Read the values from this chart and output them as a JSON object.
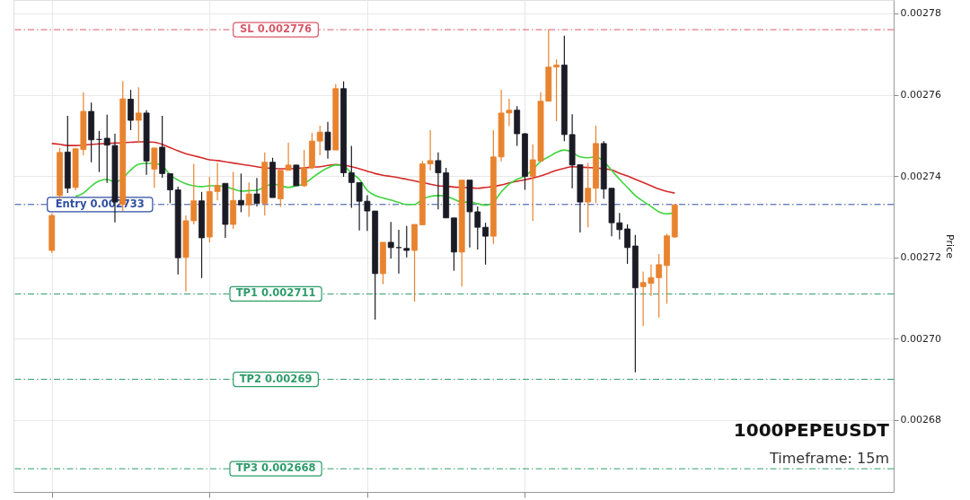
{
  "chart_data": {
    "type": "candlestick",
    "title": "1000PEPEUSDT",
    "subtitle": "Timeframe: 15m",
    "ylabel": "Price",
    "categories": [
      null,
      null,
      null,
      null,
      null,
      null,
      null,
      null,
      null,
      null,
      null,
      null,
      null,
      null,
      null,
      null,
      null,
      null,
      null,
      null,
      null,
      null,
      null,
      null,
      null,
      null,
      null,
      null,
      null,
      null,
      null,
      null,
      null,
      null,
      null,
      null,
      null,
      null,
      null,
      null,
      null,
      null,
      null,
      null,
      null,
      null,
      null,
      null,
      null,
      null,
      null,
      null,
      null,
      null,
      null,
      null,
      null,
      null,
      null,
      null,
      null,
      null,
      null,
      null,
      null,
      null,
      null,
      null,
      null,
      null,
      null,
      null,
      null,
      null,
      null,
      null,
      null,
      null,
      null,
      null
    ],
    "ohlc": [
      [
        0.0027217,
        0.0027308,
        0.0027211,
        0.0027303
      ],
      [
        0.0027352,
        0.0027469,
        0.0027343,
        0.0027458
      ],
      [
        0.0027459,
        0.0027548,
        0.0027358,
        0.002737
      ],
      [
        0.0027372,
        0.0027469,
        0.0027365,
        0.0027467
      ],
      [
        0.0027465,
        0.0027606,
        0.0027451,
        0.0027559
      ],
      [
        0.0027559,
        0.0027581,
        0.0027434,
        0.0027489
      ],
      [
        0.002749,
        0.0027511,
        0.002741,
        0.002749
      ],
      [
        0.0027493,
        0.0027551,
        0.0027383,
        0.0027476
      ],
      [
        0.0027475,
        0.0027504,
        0.0027286,
        0.0027336
      ],
      [
        0.002733,
        0.0027634,
        0.0027314,
        0.002759
      ],
      [
        0.0027589,
        0.0027612,
        0.0027513,
        0.0027537
      ],
      [
        0.0027537,
        0.0027618,
        0.0027484,
        0.0027555
      ],
      [
        0.0027555,
        0.0027562,
        0.0027403,
        0.0027437
      ],
      [
        0.0027417,
        0.0027469,
        0.0027371,
        0.0027469
      ],
      [
        0.0027471,
        0.0027548,
        0.0027396,
        0.0027406
      ],
      [
        0.0027406,
        0.0027406,
        0.0027333,
        0.0027366
      ],
      [
        0.0027366,
        0.0027374,
        0.0027158,
        0.0027199
      ],
      [
        0.00272,
        0.0027303,
        0.0027116,
        0.002729
      ],
      [
        0.002729,
        0.002743,
        0.0027281,
        0.0027339
      ],
      [
        0.0027339,
        0.0027361,
        0.0027149,
        0.0027248
      ],
      [
        0.002725,
        0.0027398,
        0.0027237,
        0.0027362
      ],
      [
        0.0027362,
        0.0027432,
        0.002734,
        0.0027377
      ],
      [
        0.0027382,
        0.0027382,
        0.0027248,
        0.0027281
      ],
      [
        0.0027281,
        0.002741,
        0.002727,
        0.002734
      ],
      [
        0.002734,
        0.0027406,
        0.0027311,
        0.0027329
      ],
      [
        0.0027329,
        0.0027384,
        0.00273,
        0.0027356
      ],
      [
        0.0027356,
        0.0027395,
        0.0027325,
        0.0027333
      ],
      [
        0.0027333,
        0.0027458,
        0.0027303,
        0.0027434
      ],
      [
        0.0027434,
        0.0027445,
        0.0027347,
        0.0027347
      ],
      [
        0.0027344,
        0.0027414,
        0.0027324,
        0.0027414
      ],
      [
        0.0027414,
        0.0027482,
        0.0027414,
        0.0027427
      ],
      [
        0.0027427,
        0.0027427,
        0.0027376,
        0.0027376
      ],
      [
        0.0027376,
        0.0027464,
        0.0027373,
        0.002742
      ],
      [
        0.002742,
        0.0027506,
        0.0027417,
        0.0027486
      ],
      [
        0.0027486,
        0.0027524,
        0.0027451,
        0.0027508
      ],
      [
        0.0027508,
        0.0027533,
        0.0027443,
        0.0027464
      ],
      [
        0.0027464,
        0.0027626,
        0.0027464,
        0.0027615
      ],
      [
        0.0027615,
        0.0027633,
        0.0027398,
        0.0027408
      ],
      [
        0.0027408,
        0.0027474,
        0.0027322,
        0.0027384
      ],
      [
        0.0027384,
        0.0027384,
        0.0027266,
        0.0027338
      ],
      [
        0.0027338,
        0.0027353,
        0.0027265,
        0.0027314
      ],
      [
        0.0027314,
        0.0027314,
        0.0027047,
        0.002716
      ],
      [
        0.002716,
        0.0027237,
        0.0027134,
        0.0027237
      ],
      [
        0.0027237,
        0.0027287,
        0.0027197,
        0.0027224
      ],
      [
        0.0027224,
        0.0027268,
        0.002716,
        0.0027224
      ],
      [
        0.0027222,
        0.0027277,
        0.00272,
        0.0027217
      ],
      [
        0.0027217,
        0.0027281,
        0.0027091,
        0.0027281
      ],
      [
        0.002728,
        0.0027437,
        0.002728,
        0.002743
      ],
      [
        0.002743,
        0.0027513,
        0.0027414,
        0.0027438
      ],
      [
        0.0027438,
        0.0027458,
        0.0027318,
        0.0027408
      ],
      [
        0.0027408,
        0.002742,
        0.0027297,
        0.0027297
      ],
      [
        0.0027297,
        0.0027297,
        0.0027167,
        0.0027213
      ],
      [
        0.0027213,
        0.002739,
        0.0027128,
        0.002739
      ],
      [
        0.002739,
        0.002739,
        0.0027224,
        0.0027312
      ],
      [
        0.0027312,
        0.0027325,
        0.0027219,
        0.0027274
      ],
      [
        0.0027274,
        0.0027285,
        0.0027182,
        0.0027252
      ],
      [
        0.0027252,
        0.0027513,
        0.0027233,
        0.0027447
      ],
      [
        0.0027447,
        0.0027612,
        0.0027436,
        0.0027555
      ],
      [
        0.0027555,
        0.002759,
        0.0027523,
        0.0027562
      ],
      [
        0.0027562,
        0.0027572,
        0.0027474,
        0.0027504
      ],
      [
        0.0027504,
        0.0027506,
        0.0027366,
        0.0027399
      ],
      [
        0.0027399,
        0.0027478,
        0.0027289,
        0.002744
      ],
      [
        0.0027437,
        0.0027606,
        0.0027437,
        0.0027584
      ],
      [
        0.0027584,
        0.0027761,
        0.0027584,
        0.0027668
      ],
      [
        0.0027668,
        0.0027687,
        0.0027535,
        0.0027673
      ],
      [
        0.0027673,
        0.0027745,
        0.0027486,
        0.0027502
      ],
      [
        0.0027502,
        0.0027552,
        0.002737,
        0.0027427
      ],
      [
        0.0027428,
        0.0027428,
        0.0027261,
        0.0027336
      ],
      [
        0.0027336,
        0.0027432,
        0.0027274,
        0.002737
      ],
      [
        0.002737,
        0.0027524,
        0.0027333,
        0.002748
      ],
      [
        0.002748,
        0.0027486,
        0.0027344,
        0.0027368
      ],
      [
        0.002737,
        0.002737,
        0.0027252,
        0.0027285
      ],
      [
        0.0027285,
        0.0027309,
        0.0027244,
        0.0027268
      ],
      [
        0.002727,
        0.0027281,
        0.0027184,
        0.0027224
      ],
      [
        0.0027228,
        0.0027255,
        0.0026917,
        0.0027125
      ],
      [
        0.0027128,
        0.0027165,
        0.0027031,
        0.0027138
      ],
      [
        0.0027136,
        0.0027182,
        0.0027105,
        0.002715
      ],
      [
        0.002715,
        0.0027208,
        0.0027052,
        0.0027182
      ],
      [
        0.002718,
        0.0027258,
        0.0027086,
        0.0027253
      ],
      [
        0.002725,
        0.0027331,
        0.0027248,
        0.0027329
      ]
    ],
    "series": [
      {
        "type": "line",
        "color": "#d42a2a",
        "values": [
          0.002748,
          0.0027478,
          0.0027475,
          0.0027475,
          0.0027476,
          0.0027478,
          0.0027479,
          0.002748,
          0.0027481,
          0.0027482,
          0.0027483,
          0.0027484,
          0.0027484,
          0.0027483,
          0.0027478,
          0.002747,
          0.0027462,
          0.0027455,
          0.002745,
          0.0027445,
          0.002744,
          0.0027438,
          0.0027435,
          0.0027432,
          0.0027429,
          0.0027426,
          0.0027423,
          0.002742,
          0.0027419,
          0.0027418,
          0.0027418,
          0.0027419,
          0.002742,
          0.0027422,
          0.0027423,
          0.0027426,
          0.0027428,
          0.0027427,
          0.0027423,
          0.0027418,
          0.0027412,
          0.0027406,
          0.0027402,
          0.0027399,
          0.0027396,
          0.0027392,
          0.0027388,
          0.0027384,
          0.002738,
          0.0027376,
          0.0027375,
          0.0027373,
          0.0027372,
          0.0027371,
          0.002737,
          0.0027372,
          0.0027374,
          0.0027378,
          0.0027383,
          0.0027387,
          0.0027391,
          0.0027395,
          0.00274,
          0.0027407,
          0.0027414,
          0.0027419,
          0.0027423,
          0.0027422,
          0.0027421,
          0.002742,
          0.0027418,
          0.0027415,
          0.0027407,
          0.00274,
          0.0027392,
          0.0027384,
          0.0027376,
          0.0027368,
          0.0027362,
          0.0027358
        ]
      },
      {
        "type": "line",
        "color": "#3fd43f",
        "values": [
          null,
          null,
          null,
          0.002735,
          0.0027358,
          0.0027375,
          0.0027388,
          0.0027392,
          0.0027385,
          0.0027395,
          0.0027415,
          0.0027429,
          0.0027431,
          0.0027431,
          0.0027425,
          0.0027403,
          0.002739,
          0.0027381,
          0.0027376,
          0.0027374,
          0.0027376,
          0.0027376,
          0.0027374,
          0.0027368,
          0.0027363,
          0.0027364,
          0.0027365,
          0.0027373,
          0.0027381,
          0.0027376,
          0.0027372,
          0.0027376,
          0.0027381,
          0.0027395,
          0.0027409,
          0.002742,
          0.0027427,
          0.0027425,
          0.0027407,
          0.0027392,
          0.0027365,
          0.0027352,
          0.0027346,
          0.0027341,
          0.0027335,
          0.002733,
          0.002733,
          0.0027343,
          0.002735,
          0.0027352,
          0.002735,
          0.0027343,
          0.0027336,
          0.0027336,
          0.0027332,
          0.0027328,
          0.0027336,
          0.0027361,
          0.002738,
          0.0027392,
          0.00274,
          0.0027416,
          0.0027436,
          0.0027447,
          0.0027458,
          0.0027464,
          0.0027458,
          0.0027447,
          0.0027445,
          0.0027447,
          0.0027436,
          0.0027414,
          0.0027392,
          0.0027372,
          0.0027352,
          0.0027338,
          0.0027325,
          0.0027312,
          0.0027307,
          0.002731
        ]
      }
    ],
    "ylim": [
      0.0026623,
      0.0027833
    ],
    "yticks": [
      0.00268,
      {
        "value": 0.0027,
        "label": "0.00270"
      },
      0.00272,
      0.00274,
      0.00276,
      0.00278
    ],
    "grid": true,
    "tick_labels": "y",
    "ref_lines": [
      {
        "axis": "y",
        "value": 0.002776,
        "label": "SL 0.002776",
        "color": "#d9596a",
        "line_style": "dashed"
      },
      {
        "axis": "y",
        "value": 0.002733,
        "label": "Entry 0.002733",
        "color": "#2f4ea0",
        "line_style": "dashed"
      },
      {
        "axis": "y",
        "value": 0.002711,
        "label": "TP1 0.002711",
        "color": "#2e9c6a",
        "line_style": "dashed"
      },
      {
        "axis": "y",
        "value": 0.00269,
        "label": "TP2 0.00269",
        "color": "#2e9c6a",
        "line_style": "dashed"
      },
      {
        "axis": "y",
        "value": 0.002668,
        "label": "TP3 0.002668",
        "color": "#2e9c6a",
        "line_style": "dashed"
      }
    ]
  }
}
